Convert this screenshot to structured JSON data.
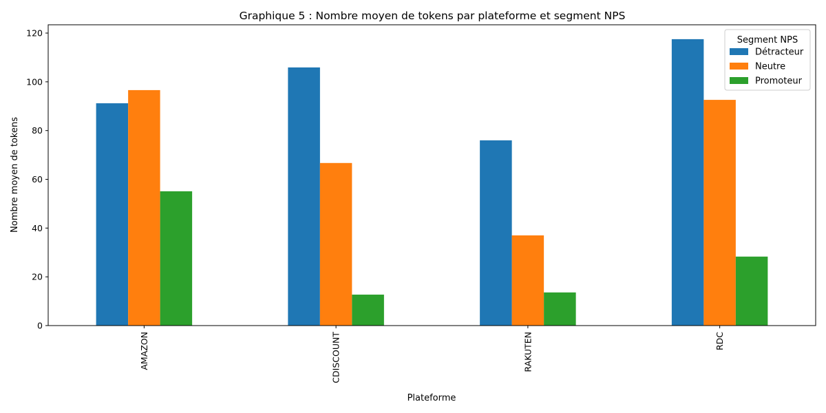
{
  "chart_data": {
    "type": "bar",
    "title": "Graphique 5 : Nombre moyen de tokens par plateforme et segment NPS",
    "xlabel": "Plateforme",
    "ylabel": "Nombre moyen de tokens",
    "categories": [
      "AMAZON",
      "CDISCOUNT",
      "RAKUTEN",
      "RDC"
    ],
    "series": [
      {
        "name": "Détracteur",
        "color": "#1f77b4",
        "values": [
          91.2,
          105.9,
          76.0,
          117.5
        ]
      },
      {
        "name": "Neutre",
        "color": "#ff7f0e",
        "values": [
          96.6,
          66.7,
          37.0,
          92.6
        ]
      },
      {
        "name": "Promoteur",
        "color": "#2ca02c",
        "values": [
          55.1,
          12.7,
          13.6,
          28.3
        ]
      }
    ],
    "ylim": [
      0,
      123.4
    ],
    "yticks": [
      0,
      20,
      40,
      60,
      80,
      100,
      120
    ],
    "grid": false,
    "legend": {
      "title": "Segment NPS",
      "placement": "top-right"
    }
  }
}
